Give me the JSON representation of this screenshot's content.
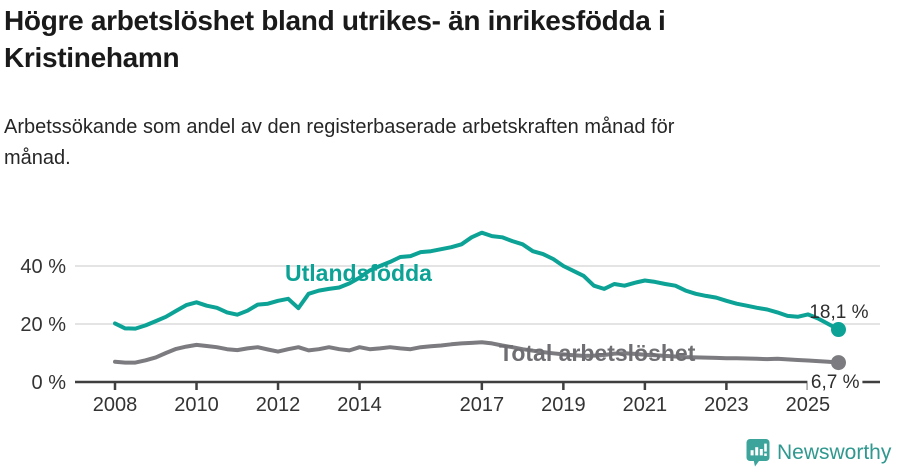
{
  "header": {
    "title": "Högre arbetslöshet bland utrikes- än inrikesfödda i\nKristinehamn",
    "subtitle": "Arbetssökande som andel av den registerbaserade arbetskraften månad för\nmånad."
  },
  "chart_data": {
    "type": "line",
    "title": "Högre arbetslöshet bland utrikes- än inrikesfödda i Kristinehamn",
    "ylabel": "",
    "xlabel": "",
    "grid": "horizontal",
    "legend_position": "inline-labels",
    "xlim": [
      2008,
      2025.9
    ],
    "ylim": [
      0,
      55
    ],
    "x_unit": "year (monthly share of registered labour force, values estimated quarterly)",
    "x": [
      2008,
      2008.25,
      2008.5,
      2008.75,
      2009,
      2009.25,
      2009.5,
      2009.75,
      2010,
      2010.25,
      2010.5,
      2010.75,
      2011,
      2011.25,
      2011.5,
      2011.75,
      2012,
      2012.25,
      2012.5,
      2012.75,
      2013,
      2013.25,
      2013.5,
      2013.75,
      2014,
      2014.25,
      2014.5,
      2014.75,
      2015,
      2015.25,
      2015.5,
      2015.75,
      2016,
      2016.25,
      2016.5,
      2016.75,
      2017,
      2017.25,
      2017.5,
      2017.75,
      2018,
      2018.25,
      2018.5,
      2018.75,
      2019,
      2019.25,
      2019.5,
      2019.75,
      2020,
      2020.25,
      2020.5,
      2020.75,
      2021,
      2021.25,
      2021.5,
      2021.75,
      2022,
      2022.25,
      2022.5,
      2022.75,
      2023,
      2023.25,
      2023.5,
      2023.75,
      2024,
      2024.25,
      2024.5,
      2024.75,
      2025,
      2025.25,
      2025.5,
      2025.75
    ],
    "series": [
      {
        "name": "Utlandsfödda",
        "color": "#0ca295",
        "end_label": "18,1 %",
        "end_value": 18.1,
        "values": [
          20.2,
          18.5,
          18.4,
          19.5,
          21.0,
          22.5,
          24.5,
          26.5,
          27.5,
          26.3,
          25.6,
          24.0,
          23.2,
          24.6,
          26.7,
          27.0,
          28.0,
          28.7,
          25.5,
          30.4,
          31.5,
          32.1,
          32.6,
          34.0,
          36.0,
          38.5,
          40.0,
          41.4,
          43.1,
          43.4,
          44.8,
          45.1,
          45.8,
          46.5,
          47.5,
          49.9,
          51.5,
          50.3,
          49.9,
          48.6,
          47.5,
          45.1,
          44.1,
          42.4,
          40.0,
          38.3,
          36.6,
          33.2,
          32.1,
          33.8,
          33.2,
          34.2,
          35.0,
          34.5,
          33.8,
          33.2,
          31.5,
          30.4,
          29.7,
          29.1,
          28.0,
          27.0,
          26.3,
          25.6,
          25.0,
          24.0,
          22.8,
          22.5,
          23.3,
          21.9,
          20.0,
          18.1
        ]
      },
      {
        "name": "Total arbetslöshet",
        "color": "#7c7c80",
        "end_label": "6,7 %",
        "end_value": 6.7,
        "values": [
          7.0,
          6.7,
          6.7,
          7.5,
          8.5,
          10.0,
          11.4,
          12.2,
          12.8,
          12.4,
          12.0,
          11.3,
          11.0,
          11.6,
          12.0,
          11.2,
          10.5,
          11.3,
          12.0,
          10.9,
          11.3,
          12.0,
          11.3,
          10.9,
          12.0,
          11.3,
          11.6,
          12.0,
          11.6,
          11.3,
          12.0,
          12.3,
          12.6,
          13.0,
          13.3,
          13.5,
          13.7,
          13.3,
          12.6,
          12.0,
          11.3,
          10.8,
          10.3,
          9.9,
          9.5,
          9.2,
          9.0,
          9.1,
          9.3,
          9.8,
          9.9,
          9.7,
          9.4,
          9.2,
          9.0,
          8.8,
          8.6,
          8.5,
          8.4,
          8.3,
          8.2,
          8.2,
          8.1,
          8.0,
          7.9,
          8.0,
          7.8,
          7.6,
          7.4,
          7.2,
          7.0,
          6.7
        ]
      }
    ],
    "x_ticks": [
      {
        "value": 2008,
        "label": "2008"
      },
      {
        "value": 2010,
        "label": "2010"
      },
      {
        "value": 2012,
        "label": "2012"
      },
      {
        "value": 2014,
        "label": "2014"
      },
      {
        "value": 2017,
        "label": "2017"
      },
      {
        "value": 2019,
        "label": "2019"
      },
      {
        "value": 2021,
        "label": "2021"
      },
      {
        "value": 2023,
        "label": "2023"
      },
      {
        "value": 2025,
        "label": "2025"
      }
    ],
    "y_ticks": [
      {
        "value": 0,
        "label": "0 %"
      },
      {
        "value": 20,
        "label": "20 %"
      },
      {
        "value": 40,
        "label": "40 %"
      }
    ]
  },
  "colors": {
    "accent_teal": "#0ca295",
    "series_gray": "#7c7c80",
    "gray_label": "#6e6e73",
    "axis": "#3f3f3f",
    "gridline": "#dcdcdc",
    "tick_text": "#333333",
    "logo_teal": "#3da49b",
    "logo_text_teal": "#2f988f"
  },
  "footer": {
    "brand": "Newsworthy"
  }
}
